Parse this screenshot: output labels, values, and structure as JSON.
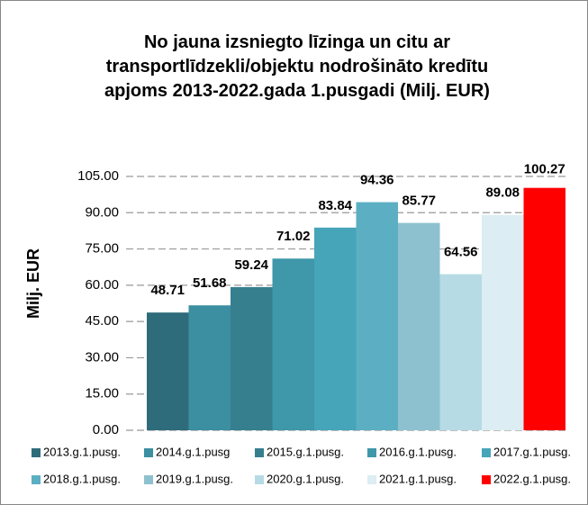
{
  "chart_data": {
    "type": "bar",
    "title": "No jauna izsniegto līzinga un citu ar transportlīdzekli/objektu nodrošināto kredītu apjoms 2013-2022.gada 1.pusgadi (Milj. EUR)",
    "y_label": "Milj. EUR",
    "categories": [
      "2013.g.1.pusg.",
      "2014.g.1.pusg",
      "2015.g.1.pusg.",
      "2016.g.1.pusg.",
      "2017.g.1.pusg.",
      "2018.g.1.pusg.",
      "2019.g.1.pusg.",
      "2020.g.1.pusg.",
      "2021.g.1.pusg.",
      "2022.g.1.pusg."
    ],
    "values": [
      48.71,
      51.68,
      59.24,
      71.02,
      83.84,
      94.36,
      85.77,
      64.56,
      89.08,
      100.27
    ],
    "colors": [
      "#2f6c7b",
      "#3b8fa0",
      "#367f8f",
      "#3f97aa",
      "#46a5b8",
      "#5cafc2",
      "#8ec1cf",
      "#b6dbe5",
      "#dcedf3",
      "#ff0000"
    ],
    "ylim": [
      0,
      105
    ],
    "yticks": [
      {
        "value": 0,
        "label": "0.00"
      },
      {
        "value": 15,
        "label": "15.00"
      },
      {
        "value": 30,
        "label": "30.00"
      },
      {
        "value": 45,
        "label": "45.00"
      },
      {
        "value": 60,
        "label": "60.00"
      },
      {
        "value": 75,
        "label": "75.00"
      },
      {
        "value": 90,
        "label": "90.00"
      },
      {
        "value": 105,
        "label": "105.00"
      }
    ],
    "grid": true,
    "legend": "bottom"
  }
}
